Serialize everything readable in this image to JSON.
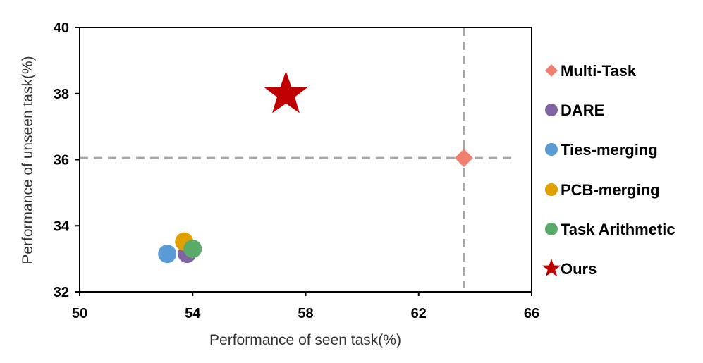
{
  "chart_data": {
    "type": "scatter",
    "xlabel": "Performance of seen task(%)",
    "ylabel": "Performance of unseen task(%)",
    "xlim": [
      50,
      66
    ],
    "ylim": [
      32,
      40
    ],
    "xticks": [
      "50",
      "54",
      "58",
      "62",
      "66"
    ],
    "yticks": [
      "32",
      "34",
      "36",
      "38",
      "40"
    ],
    "grid": false,
    "legend_position": "right",
    "reference_lines": {
      "x": 63.6,
      "y": 36.05,
      "style": "dashed",
      "color": "#a6a6a6"
    },
    "series": [
      {
        "name": "Multi-Task",
        "marker": "diamond",
        "color": "#f08070",
        "x": 63.6,
        "y": 36.05
      },
      {
        "name": "DARE",
        "marker": "circle",
        "color": "#8064a2",
        "x": 53.8,
        "y": 33.15
      },
      {
        "name": "Ties-merging",
        "marker": "circle",
        "color": "#5b9bd5",
        "x": 53.1,
        "y": 33.15
      },
      {
        "name": "PCB-merging",
        "marker": "circle",
        "color": "#e0a000",
        "x": 53.7,
        "y": 33.52
      },
      {
        "name": "Task Arithmetic",
        "marker": "circle",
        "color": "#5aab6a",
        "x": 54.0,
        "y": 33.3
      },
      {
        "name": "Ours",
        "marker": "star",
        "color": "#c00000",
        "x": 57.3,
        "y": 37.98
      }
    ]
  }
}
